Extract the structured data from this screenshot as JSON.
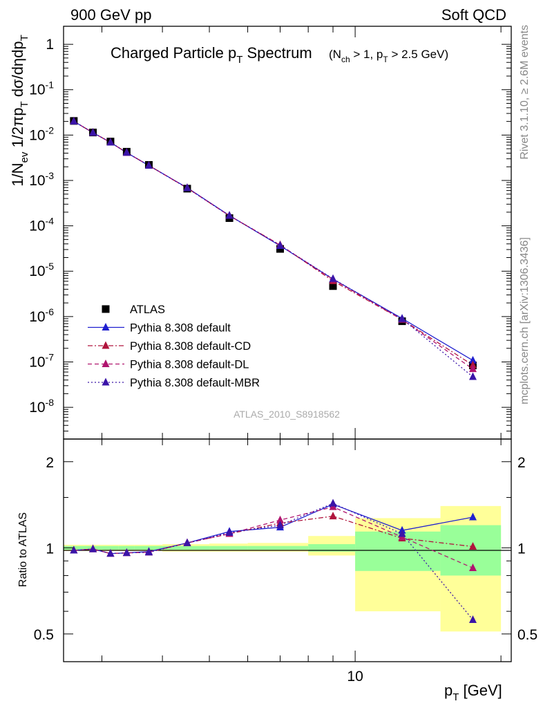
{
  "header": {
    "left": "900 GeV pp",
    "right": "Soft QCD"
  },
  "side_labels": {
    "rivet": "Rivet 3.1.10, ≥ 2.6M events",
    "mcplots": "mcplots.cern.ch [arXiv:1306.3436]"
  },
  "analysis_tag": "ATLAS_2010_S8918562",
  "chart_data": [
    {
      "type": "line",
      "title": "Charged Particle p_T Spectrum",
      "subtitle": "(N_ch > 1, p_T > 2.5 GeV)",
      "ylabel": "1/N_ev 1/2πp_T dσ/dηdp_T",
      "xlabel": "p_T [GeV]",
      "xscale": "log",
      "yscale": "log",
      "xlim": [
        2.5,
        21
      ],
      "ylim": [
        2e-09,
        2.5
      ],
      "grid": false,
      "legend_position": "bottom-left",
      "y_ticks": [
        "1",
        "10^-1",
        "10^-2",
        "10^-3",
        "10^-4",
        "10^-5",
        "10^-6",
        "10^-7",
        "10^-8"
      ],
      "x": [
        2.625,
        2.875,
        3.125,
        3.375,
        3.75,
        4.5,
        5.5,
        7.0,
        9.0,
        12.5,
        17.5
      ],
      "series": [
        {
          "name": "ATLAS",
          "color": "#000000",
          "style": "marker-square",
          "values": [
            0.0205,
            0.0114,
            0.0072,
            0.0043,
            0.0022,
            0.00066,
            0.000148,
            3.1e-05,
            4.7e-06,
            7.9e-07,
            8.4e-08
          ]
        },
        {
          "name": "Pythia 8.308 default",
          "color": "#1f1fcf",
          "style": "solid",
          "values": [
            0.0201,
            0.0113,
            0.0069,
            0.0041,
            0.00213,
            0.00069,
            0.000169,
            3.63e-05,
            6.7e-06,
            9.1e-07,
            1.08e-07
          ]
        },
        {
          "name": "Pythia 8.308 default-CD",
          "color": "#b0143c",
          "style": "dashdot",
          "values": [
            0.0201,
            0.0113,
            0.0069,
            0.0041,
            0.00213,
            0.00068,
            0.000167,
            3.8e-05,
            6.1e-06,
            8.6e-07,
            8.5e-08
          ]
        },
        {
          "name": "Pythia 8.308 default-DL",
          "color": "#b0146e",
          "style": "dashed",
          "values": [
            0.0201,
            0.0113,
            0.0069,
            0.0041,
            0.00213,
            0.00068,
            0.000167,
            3.75e-05,
            6.6e-06,
            8.6e-07,
            7e-08
          ]
        },
        {
          "name": "Pythia 8.308 default-MBR",
          "color": "#3a14a8",
          "style": "dotted",
          "values": [
            0.0201,
            0.0113,
            0.0069,
            0.0041,
            0.00213,
            0.00068,
            0.000167,
            3.7e-05,
            6.8e-06,
            8.9e-07,
            4.7e-08
          ]
        }
      ]
    },
    {
      "type": "line",
      "ylabel": "Ratio to ATLAS",
      "xlabel": "p_T [GeV]",
      "xscale": "log",
      "yscale": "log",
      "xlim": [
        2.5,
        21
      ],
      "ylim": [
        0.4,
        2.4
      ],
      "grid": false,
      "y_ticks": [
        "0.5",
        "1",
        "2"
      ],
      "x_ticks": [
        "10"
      ],
      "x": [
        2.625,
        2.875,
        3.125,
        3.375,
        3.75,
        4.5,
        5.5,
        7.0,
        9.0,
        12.5,
        17.5
      ],
      "uncertainty_bands": {
        "bin_edges": [
          2.5,
          2.75,
          3.0,
          3.25,
          3.5,
          4.0,
          5.0,
          6.0,
          8.0,
          10.0,
          15.0,
          20.0
        ],
        "inner": [
          [
            0.985,
            1.015
          ],
          [
            0.985,
            1.015
          ],
          [
            0.985,
            1.015
          ],
          [
            0.985,
            1.015
          ],
          [
            0.985,
            1.015
          ],
          [
            0.985,
            1.015
          ],
          [
            0.985,
            1.015
          ],
          [
            0.985,
            1.015
          ],
          [
            0.97,
            1.03
          ],
          [
            0.83,
            1.14
          ],
          [
            0.8,
            1.2
          ]
        ],
        "outer": [
          [
            0.975,
            1.025
          ],
          [
            0.975,
            1.025
          ],
          [
            0.975,
            1.025
          ],
          [
            0.975,
            1.025
          ],
          [
            0.975,
            1.025
          ],
          [
            0.97,
            1.03
          ],
          [
            0.97,
            1.035
          ],
          [
            0.97,
            1.04
          ],
          [
            0.94,
            1.1
          ],
          [
            0.6,
            1.27
          ],
          [
            0.51,
            1.4
          ]
        ]
      },
      "series": [
        {
          "name": "Pythia 8.308 default",
          "color": "#1f1fcf",
          "style": "solid",
          "values": [
            0.98,
            0.99,
            0.955,
            0.96,
            0.97,
            1.04,
            1.14,
            1.18,
            1.42,
            1.15,
            1.28
          ]
        },
        {
          "name": "Pythia 8.308 default-CD",
          "color": "#b0143c",
          "style": "dashdot",
          "values": [
            0.98,
            0.99,
            0.955,
            0.96,
            0.965,
            1.04,
            1.12,
            1.22,
            1.29,
            1.08,
            1.01
          ]
        },
        {
          "name": "Pythia 8.308 default-DL",
          "color": "#b0146e",
          "style": "dashed",
          "values": [
            0.98,
            0.99,
            0.955,
            0.96,
            0.965,
            1.04,
            1.12,
            1.25,
            1.39,
            1.09,
            0.85
          ]
        },
        {
          "name": "Pythia 8.308 default-MBR",
          "color": "#3a14a8",
          "style": "dotted",
          "values": [
            0.98,
            0.99,
            0.955,
            0.96,
            0.965,
            1.04,
            1.13,
            1.2,
            1.43,
            1.12,
            0.56
          ]
        }
      ]
    }
  ]
}
